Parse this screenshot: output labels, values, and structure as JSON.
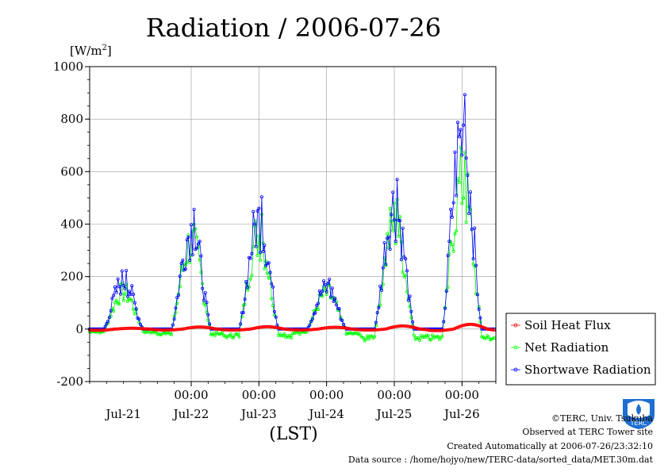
{
  "chart_data": {
    "type": "line",
    "title": "Radiation / 2006-07-26",
    "ylabel": "[W/m2]",
    "ylabel_base": "[W/m",
    "ylabel_sup": "2",
    "ylabel_end": "]",
    "xlabel": "(LST)",
    "ylim": [
      -200,
      1000
    ],
    "yticks": [
      "-200",
      "0",
      "200",
      "400",
      "600",
      "800",
      "1000"
    ],
    "xlim_days": [
      -5.5,
      0.5
    ],
    "xtick_times": [
      "00:00",
      "00:00",
      "00:00",
      "00:00",
      "00:00"
    ],
    "day_labels": [
      "Jul-21",
      "Jul-22",
      "Jul-23",
      "Jul-24",
      "Jul-25",
      "Jul-26"
    ],
    "grid": true,
    "legend_placement": "bottom-right",
    "series": [
      {
        "name": "Soil Heat Flux",
        "color": "#ff0000",
        "days": [
          {
            "day": -5,
            "peak": 3,
            "start": 12,
            "end": 15,
            "min": -8
          },
          {
            "day": -4,
            "peak": 8,
            "start": 12,
            "end": 15,
            "min": -6
          },
          {
            "day": -3,
            "peak": 9,
            "start": 12,
            "end": 15,
            "min": -6
          },
          {
            "day": -2,
            "peak": 7,
            "start": 12,
            "end": 15,
            "min": -6
          },
          {
            "day": -1,
            "peak": 12,
            "start": 12,
            "end": 15,
            "min": -6
          },
          {
            "day": 0,
            "peak": 18,
            "start": 12,
            "end": 15,
            "min": -10
          }
        ]
      },
      {
        "name": "Net Radiation",
        "color": "#00ff00",
        "days": [
          {
            "day": -5,
            "peak": 180,
            "start": 5,
            "end": 19,
            "min": -15
          },
          {
            "day": -4,
            "peak": 420,
            "start": 5,
            "end": 19,
            "min": -25
          },
          {
            "day": -3,
            "peak": 460,
            "start": 5,
            "end": 19,
            "min": -35
          },
          {
            "day": -2,
            "peak": 175,
            "start": 5,
            "end": 19,
            "min": -20
          },
          {
            "day": -1,
            "peak": 520,
            "start": 5,
            "end": 19,
            "min": -45
          },
          {
            "day": 0,
            "peak": 710,
            "start": 5,
            "end": 19,
            "min": -45
          }
        ]
      },
      {
        "name": "Shortwave Radiation",
        "color": "#0000ff",
        "days": [
          {
            "day": -5,
            "peak": 235,
            "start": 5,
            "end": 19,
            "min": 0
          },
          {
            "day": -4,
            "peak": 480,
            "start": 5,
            "end": 19,
            "min": 0
          },
          {
            "day": -3,
            "peak": 530,
            "start": 5,
            "end": 19,
            "min": 0
          },
          {
            "day": -2,
            "peak": 200,
            "start": 5,
            "end": 19,
            "min": 0
          },
          {
            "day": -1,
            "peak": 600,
            "start": 5,
            "end": 19,
            "min": 0
          },
          {
            "day": 0,
            "peak": 940,
            "start": 5,
            "end": 19,
            "min": 0
          }
        ]
      }
    ]
  },
  "footer": {
    "copyright": "©TERC, Univ. Tsukuba",
    "observed": "Observed at TERC Tower site",
    "created": "Created Automatically at 2006-07-26/23:32:10",
    "source": "Data source : /home/hojyo/new/TERC-data/sorted_data/MET.30m.dat"
  },
  "logo": {
    "text": "TERC"
  }
}
